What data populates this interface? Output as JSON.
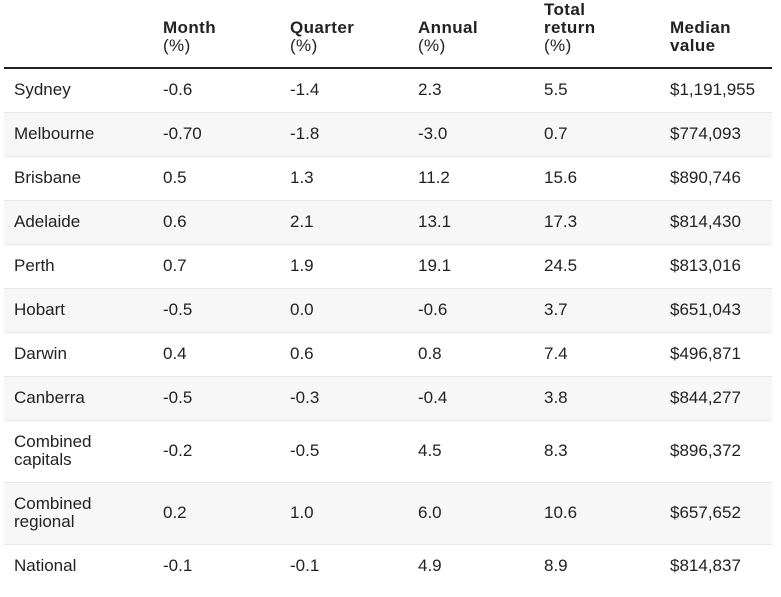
{
  "table": {
    "headers": [
      {
        "lines": [
          "",
          ""
        ]
      },
      {
        "lines": [
          "Month",
          "(%)"
        ]
      },
      {
        "lines": [
          "Quarter",
          "(%)"
        ]
      },
      {
        "lines": [
          "Annual",
          "(%)"
        ]
      },
      {
        "lines": [
          "Total",
          "return",
          "(%)"
        ]
      },
      {
        "lines": [
          "Median",
          "value"
        ]
      }
    ],
    "rows": [
      {
        "region": [
          "Sydney"
        ],
        "month": "-0.6",
        "quarter": "-1.4",
        "annual": "2.3",
        "total_return": "5.5",
        "median_value": "$1,191,955"
      },
      {
        "region": [
          "Melbourne"
        ],
        "month": "-0.70",
        "quarter": "-1.8",
        "annual": "-3.0",
        "total_return": "0.7",
        "median_value": "$774,093"
      },
      {
        "region": [
          "Brisbane"
        ],
        "month": "0.5",
        "quarter": "1.3",
        "annual": "11.2",
        "total_return": "15.6",
        "median_value": "$890,746"
      },
      {
        "region": [
          "Adelaide"
        ],
        "month": "0.6",
        "quarter": "2.1",
        "annual": "13.1",
        "total_return": "17.3",
        "median_value": "$814,430"
      },
      {
        "region": [
          "Perth"
        ],
        "month": "0.7",
        "quarter": "1.9",
        "annual": "19.1",
        "total_return": "24.5",
        "median_value": "$813,016"
      },
      {
        "region": [
          "Hobart"
        ],
        "month": "-0.5",
        "quarter": "0.0",
        "annual": "-0.6",
        "total_return": "3.7",
        "median_value": "$651,043"
      },
      {
        "region": [
          "Darwin"
        ],
        "month": "0.4",
        "quarter": "0.6",
        "annual": "0.8",
        "total_return": "7.4",
        "median_value": "$496,871"
      },
      {
        "region": [
          "Canberra"
        ],
        "month": "-0.5",
        "quarter": "-0.3",
        "annual": "-0.4",
        "total_return": "3.8",
        "median_value": "$844,277"
      },
      {
        "region": [
          "Combined",
          "capitals"
        ],
        "month": "-0.2",
        "quarter": "-0.5",
        "annual": "4.5",
        "total_return": "8.3",
        "median_value": "$896,372"
      },
      {
        "region": [
          "Combined",
          "regional"
        ],
        "month": "0.2",
        "quarter": "1.0",
        "annual": "6.0",
        "total_return": "10.6",
        "median_value": "$657,652"
      },
      {
        "region": [
          "National"
        ],
        "month": "-0.1",
        "quarter": "-0.1",
        "annual": "4.9",
        "total_return": "8.9",
        "median_value": "$814,837"
      }
    ]
  }
}
